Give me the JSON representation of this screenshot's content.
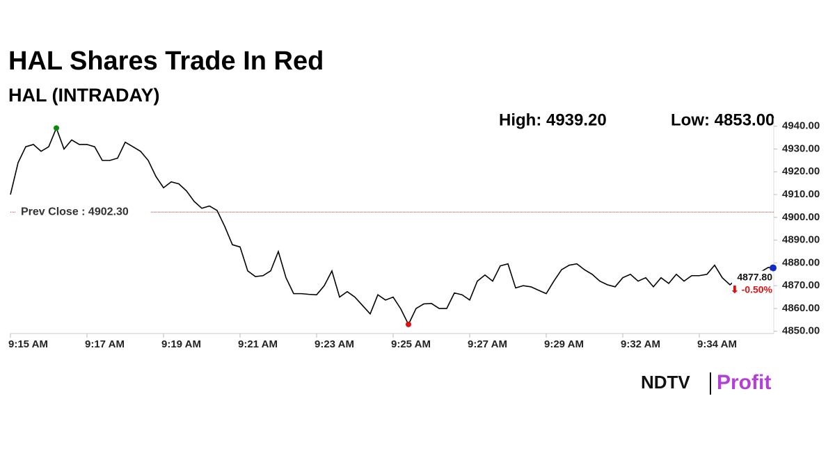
{
  "chart_data": {
    "type": "line",
    "title": "HAL Shares Trade In Red",
    "subtitle": "HAL (INTRADAY)",
    "high_text": "High: 4939.20",
    "low_text": "Low: 4853.00",
    "prev_close": 4902.3,
    "prev_close_text": "Prev Close : 4902.30",
    "last_price_text": "4877.80",
    "change_text": "⬇ -0.50%",
    "categories": [
      "9:15 AM",
      null,
      null,
      null,
      null,
      null,
      null,
      null,
      null,
      null,
      "9:17 AM",
      null,
      null,
      null,
      null,
      null,
      null,
      null,
      null,
      null,
      "9:19 AM",
      null,
      null,
      null,
      null,
      null,
      null,
      null,
      null,
      null,
      "9:21 AM",
      null,
      null,
      null,
      null,
      null,
      null,
      null,
      null,
      null,
      "9:23 AM",
      null,
      null,
      null,
      null,
      null,
      null,
      null,
      null,
      null,
      "9:25 AM",
      null,
      null,
      null,
      null,
      null,
      null,
      null,
      null,
      null,
      "9:27 AM",
      null,
      null,
      null,
      null,
      null,
      null,
      null,
      null,
      null,
      "9:29 AM",
      null,
      null,
      null,
      null,
      null,
      null,
      null,
      null,
      null,
      "9:32 AM",
      null,
      null,
      null,
      null,
      null,
      null,
      null,
      null,
      null,
      "9:34 AM",
      null,
      null,
      null,
      null,
      null,
      null,
      null,
      null,
      null,
      null
    ],
    "series": [
      {
        "name": "HAL",
        "color": "#000000",
        "values": [
          4910,
          4924,
          4931,
          4932,
          4929,
          4931,
          4939.2,
          4930,
          4934,
          4932,
          4932,
          4931,
          4925,
          4925,
          4926,
          4933,
          4931,
          4929,
          4925,
          4918,
          4913,
          4915.6,
          4914.7,
          4911.6,
          4907,
          4904,
          4905,
          4903,
          4896,
          4888,
          4887,
          4876.5,
          4874,
          4874.4,
          4876.5,
          4885,
          4873.5,
          4866.5,
          4866.5,
          4866.2,
          4866,
          4870,
          4876.5,
          4865,
          4867.4,
          4865,
          4861.3,
          4857.6,
          4866,
          4863.7,
          4865,
          4859.8,
          4853,
          4860,
          4862,
          4862.2,
          4860,
          4860,
          4866.8,
          4866,
          4863.7,
          4872,
          4874.7,
          4872,
          4878.7,
          4879.6,
          4869,
          4870,
          4869.5,
          4868,
          4866.5,
          4872,
          4877,
          4879,
          4879.6,
          4877,
          4875,
          4872,
          4870.4,
          4869.5,
          4873.5,
          4875,
          4872,
          4873.5,
          4869.5,
          4873.5,
          4871,
          4875,
          4872,
          4874.4,
          4874.4,
          4875,
          4879,
          4873.5,
          4870.4,
          4873,
          4874,
          4875,
          4876,
          4878,
          4877.8
        ]
      }
    ],
    "high_color": "#0a8a0a",
    "low_color": "#e01010",
    "last_color": "#1428c8",
    "prev_close_color": "#c0392b",
    "ylim": [
      4849,
      4944
    ],
    "yticks": [
      {
        "value": 4850,
        "label": "4850.00"
      },
      {
        "value": 4860,
        "label": "4860.00"
      },
      {
        "value": 4870,
        "label": "4870.00"
      },
      {
        "value": 4880,
        "label": "4880.00"
      },
      {
        "value": 4890,
        "label": "4890.00"
      },
      {
        "value": 4900,
        "label": "4900.00"
      },
      {
        "value": 4910,
        "label": "4910.00"
      },
      {
        "value": 4920,
        "label": "4920.00"
      },
      {
        "value": 4930,
        "label": "4930.00"
      },
      {
        "value": 4940,
        "label": "4940.00"
      }
    ],
    "logo_brand": "NDTV",
    "logo_product": "Profit"
  }
}
